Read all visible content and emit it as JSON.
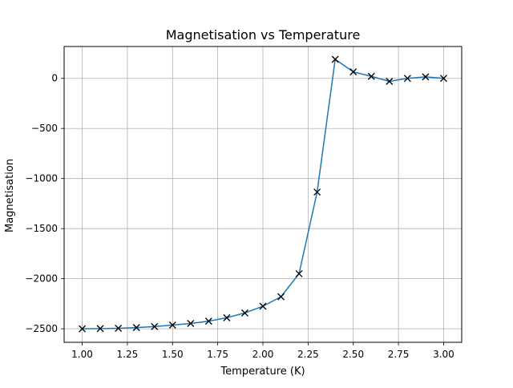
{
  "chart_data": {
    "type": "line",
    "title": "Magnetisation vs Temperature",
    "xlabel": "Temperature (K)",
    "ylabel": "Magnetisation",
    "xlim": [
      0.9,
      3.1
    ],
    "ylim": [
      -2635,
      318
    ],
    "xticks": [
      1.0,
      1.25,
      1.5,
      1.75,
      2.0,
      2.25,
      2.5,
      2.75,
      3.0
    ],
    "xtick_labels": [
      "1.00",
      "1.25",
      "1.50",
      "1.75",
      "2.00",
      "2.25",
      "2.50",
      "2.75",
      "3.00"
    ],
    "yticks": [
      0,
      -500,
      -1000,
      -1500,
      -2000,
      -2500
    ],
    "ytick_labels": [
      "0",
      "−500",
      "−1000",
      "−1500",
      "−2000",
      "−2500"
    ],
    "grid": true,
    "legend": "none",
    "series": [
      {
        "line_color": "#1f77b4",
        "marker": "x",
        "marker_color": "#000000",
        "x": [
          1.0,
          1.1,
          1.2,
          1.3,
          1.4,
          1.5,
          1.6,
          1.7,
          1.8,
          1.9,
          2.0,
          2.1,
          2.2,
          2.3,
          2.4,
          2.5,
          2.6,
          2.7,
          2.8,
          2.9,
          3.0
        ],
        "y": [
          -2500,
          -2498,
          -2495,
          -2488,
          -2478,
          -2463,
          -2447,
          -2424,
          -2390,
          -2342,
          -2275,
          -2180,
          -1950,
          -1135,
          190,
          65,
          20,
          -30,
          0,
          15,
          0
        ]
      }
    ]
  }
}
